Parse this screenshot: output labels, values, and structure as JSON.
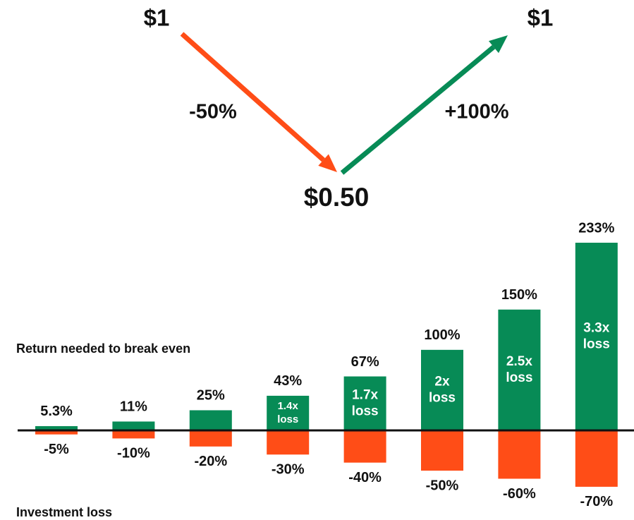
{
  "diagram": {
    "start": "$1",
    "drop": "-50%",
    "bottom": "$0.50",
    "rise": "+100%",
    "end": "$1",
    "drop_color": "#ff4d17",
    "rise_color": "#078b56"
  },
  "chart_data": {
    "type": "bar",
    "series": [
      {
        "name": "Return needed to break even",
        "color": "#078b56",
        "values": [
          5.3,
          11,
          25,
          43,
          67,
          100,
          150,
          233
        ],
        "value_labels": [
          "5.3%",
          "11%",
          "25%",
          "43%",
          "67%",
          "100%",
          "150%",
          "233%"
        ]
      },
      {
        "name": "Investment loss",
        "color": "#ff4d17",
        "values": [
          -5,
          -10,
          -20,
          -30,
          -40,
          -50,
          -60,
          -70
        ],
        "value_labels": [
          "-5%",
          "-10%",
          "-20%",
          "-30%",
          "-40%",
          "-50%",
          "-60%",
          "-70%"
        ]
      }
    ],
    "inner_labels": [
      null,
      null,
      null,
      [
        "1.4x",
        "loss"
      ],
      [
        "1.7x",
        "loss"
      ],
      [
        "2x",
        "loss"
      ],
      [
        "2.5x",
        "loss"
      ],
      [
        "3.3x",
        "loss"
      ]
    ]
  }
}
